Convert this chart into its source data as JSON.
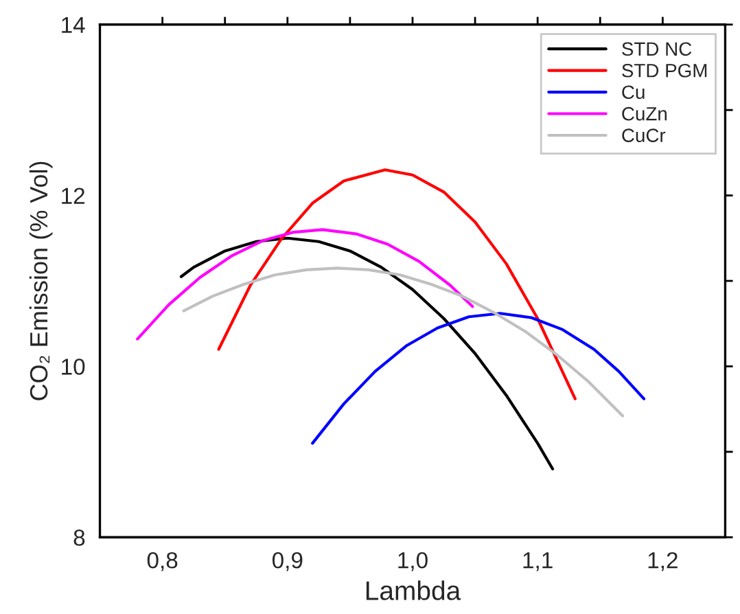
{
  "chart_data": {
    "type": "line",
    "xlabel": "Lambda",
    "ylabel": "CO₂ Emission (% Vol)",
    "xlim": [
      0.75,
      1.25
    ],
    "ylim": [
      8,
      14
    ],
    "xticks": [
      {
        "value": 0.8,
        "label": "0,8"
      },
      {
        "value": 0.85,
        "label": null
      },
      {
        "value": 0.9,
        "label": "0,9"
      },
      {
        "value": 0.95,
        "label": null
      },
      {
        "value": 1.0,
        "label": "1,0"
      },
      {
        "value": 1.05,
        "label": null
      },
      {
        "value": 1.1,
        "label": "1,1"
      },
      {
        "value": 1.15,
        "label": null
      },
      {
        "value": 1.2,
        "label": "1,2"
      }
    ],
    "yticks": [
      8,
      {
        "value": 9,
        "label": null
      },
      10,
      {
        "value": 11,
        "label": null
      },
      12,
      {
        "value": 13,
        "label": null
      },
      14
    ],
    "grid": false,
    "legend": "top right",
    "marker": "none",
    "line_style": "solid",
    "series": [
      {
        "name": "STD NC",
        "color": "#000000",
        "x": [
          0.815,
          0.825,
          0.85,
          0.875,
          0.9,
          0.925,
          0.95,
          0.975,
          1.0,
          1.025,
          1.05,
          1.075,
          1.1,
          1.112
        ],
        "values": [
          11.05,
          11.16,
          11.35,
          11.46,
          11.5,
          11.46,
          11.35,
          11.16,
          10.9,
          10.56,
          10.15,
          9.66,
          9.1,
          8.8
        ]
      },
      {
        "name": "STD PGM",
        "color": "#ff0000",
        "x": [
          0.845,
          0.87,
          0.895,
          0.92,
          0.945,
          0.978,
          1.0,
          1.025,
          1.05,
          1.075,
          1.1,
          1.13
        ],
        "values": [
          10.2,
          10.94,
          11.49,
          11.91,
          12.17,
          12.3,
          12.24,
          12.04,
          11.69,
          11.2,
          10.56,
          9.62
        ]
      },
      {
        "name": "Cu",
        "color": "#0000ff",
        "x": [
          0.92,
          0.945,
          0.97,
          0.995,
          1.02,
          1.045,
          1.07,
          1.095,
          1.12,
          1.145,
          1.165,
          1.185
        ],
        "values": [
          9.1,
          9.56,
          9.94,
          10.24,
          10.45,
          10.58,
          10.62,
          10.57,
          10.43,
          10.2,
          9.94,
          9.62
        ]
      },
      {
        "name": "CuZn",
        "color": "#ff00ff",
        "x": [
          0.78,
          0.805,
          0.83,
          0.855,
          0.88,
          0.905,
          0.928,
          0.955,
          0.98,
          1.005,
          1.03,
          1.048
        ],
        "values": [
          10.32,
          10.72,
          11.04,
          11.29,
          11.47,
          11.57,
          11.6,
          11.55,
          11.43,
          11.23,
          10.95,
          10.7
        ]
      },
      {
        "name": "CuCr",
        "color": "#c0c0c0",
        "x": [
          0.817,
          0.84,
          0.865,
          0.89,
          0.915,
          0.94,
          0.965,
          0.99,
          1.015,
          1.04,
          1.065,
          1.09,
          1.115,
          1.14,
          1.168
        ],
        "values": [
          10.65,
          10.82,
          10.96,
          11.07,
          11.13,
          11.15,
          11.13,
          11.07,
          10.96,
          10.82,
          10.63,
          10.41,
          10.14,
          9.83,
          9.42
        ]
      }
    ]
  }
}
